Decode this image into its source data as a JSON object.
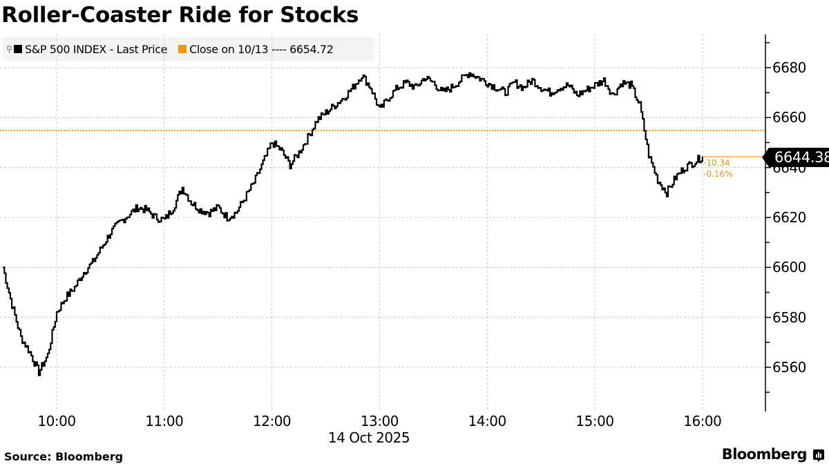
{
  "title": "Roller-Coaster Ride for Stocks",
  "legend": {
    "series_label": "S&P 500 INDEX - Last Price",
    "series_color": "#000000",
    "reference_label": "Close on 10/13 ---- 6654.72",
    "reference_color": "#f0960f"
  },
  "last_value": {
    "price": "6644.38",
    "change": "-10.34",
    "change_pct": "-0.16%"
  },
  "x_axis": {
    "ticks": [
      "10:00",
      "11:00",
      "12:00",
      "13:00",
      "14:00",
      "15:00",
      "16:00"
    ],
    "date": "14 Oct 2025"
  },
  "y_axis": {
    "ticks": [
      "6680",
      "6660",
      "6640",
      "6620",
      "6600",
      "6580",
      "6560"
    ]
  },
  "footer": {
    "source": "Source: Bloomberg",
    "brand": "Bloomberg"
  },
  "chart_data": {
    "type": "line",
    "title": "Roller-Coaster Ride for Stocks",
    "xlabel": "14 Oct 2025",
    "ylabel": "",
    "x_tick_labels": [
      "10:00",
      "11:00",
      "12:00",
      "13:00",
      "14:00",
      "15:00",
      "16:00"
    ],
    "y_tick_labels": [
      "6560",
      "6580",
      "6600",
      "6620",
      "6640",
      "6660",
      "6680"
    ],
    "ylim": [
      6546,
      6694
    ],
    "xlim": [
      "09:30",
      "16:30"
    ],
    "grid": true,
    "legend_position": "top-left",
    "reference_line": {
      "label": "Close on 10/13",
      "value": 6654.72
    },
    "last_price": 6644.38,
    "net_change": -10.34,
    "pct_change": -0.16,
    "series": [
      {
        "name": "S&P 500 INDEX - Last Price",
        "x": [
          "09:30",
          "09:35",
          "09:40",
          "09:45",
          "09:50",
          "09:55",
          "10:00",
          "10:05",
          "10:10",
          "10:15",
          "10:20",
          "10:25",
          "10:30",
          "10:35",
          "10:40",
          "10:45",
          "10:50",
          "10:55",
          "11:00",
          "11:05",
          "11:10",
          "11:15",
          "11:20",
          "11:25",
          "11:30",
          "11:35",
          "11:40",
          "11:45",
          "11:50",
          "11:55",
          "12:00",
          "12:05",
          "12:10",
          "12:15",
          "12:20",
          "12:25",
          "12:30",
          "12:35",
          "12:40",
          "12:45",
          "12:50",
          "12:55",
          "13:00",
          "13:05",
          "13:10",
          "13:15",
          "13:20",
          "13:25",
          "13:30",
          "13:35",
          "13:40",
          "13:45",
          "13:50",
          "13:55",
          "14:00",
          "14:05",
          "14:10",
          "14:15",
          "14:20",
          "14:25",
          "14:30",
          "14:35",
          "14:40",
          "14:45",
          "14:50",
          "14:55",
          "15:00",
          "15:05",
          "15:10",
          "15:15",
          "15:20",
          "15:25",
          "15:30",
          "15:35",
          "15:40",
          "15:45",
          "15:50",
          "15:55",
          "16:00"
        ],
        "values": [
          6600,
          6585,
          6572,
          6566,
          6558,
          6565,
          6582,
          6588,
          6592,
          6598,
          6602,
          6608,
          6614,
          6618,
          6621,
          6624,
          6623,
          6620,
          6619,
          6624,
          6632,
          6626,
          6623,
          6622,
          6624,
          6620,
          6622,
          6628,
          6634,
          6642,
          6650,
          6647,
          6641,
          6646,
          6652,
          6659,
          6662,
          6665,
          6668,
          6672,
          6677,
          6672,
          6663,
          6668,
          6672,
          6674,
          6672,
          6676,
          6674,
          6670,
          6672,
          6675,
          6678,
          6676,
          6674,
          6672,
          6670,
          6674,
          6672,
          6675,
          6672,
          6670,
          6672,
          6673,
          6669,
          6671,
          6673,
          6675,
          6669,
          6674,
          6673,
          6665,
          6645,
          6635,
          6630,
          6636,
          6640,
          6642,
          6644.38
        ]
      }
    ]
  }
}
